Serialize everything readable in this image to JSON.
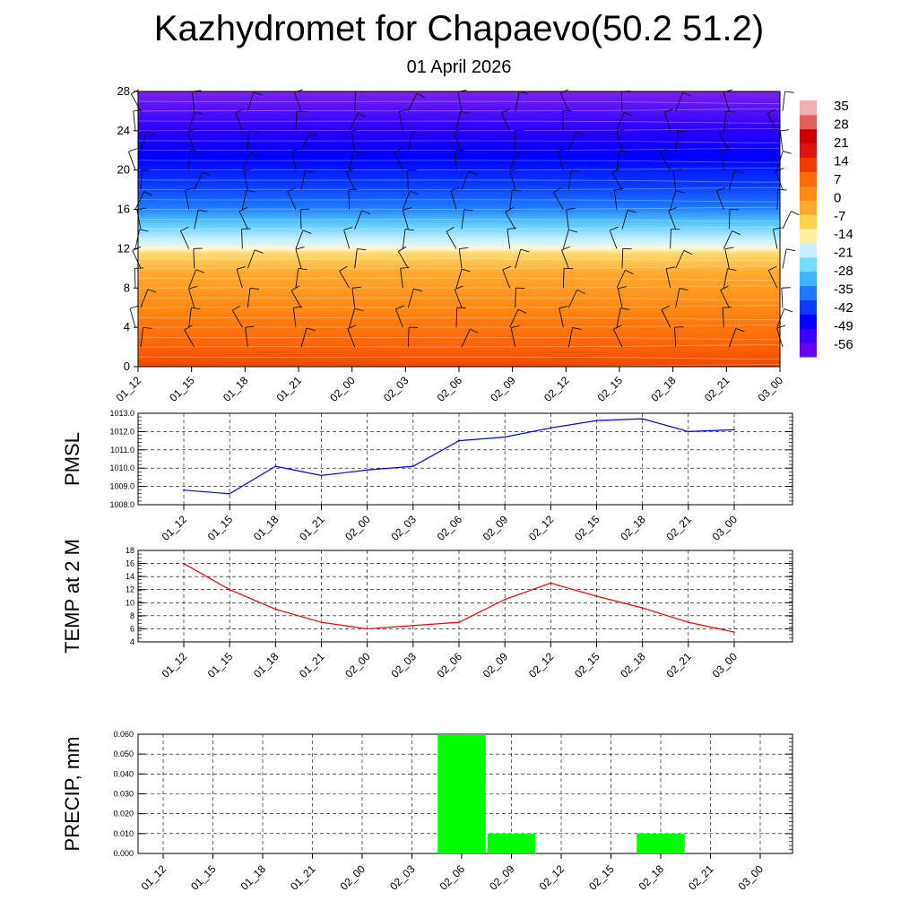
{
  "header": {
    "title": "Kazhydromet for Chapaevo(50.2 51.2)",
    "subtitle": "01 April 2026"
  },
  "colors": {
    "pmsl_line": "#0000ff",
    "temp_line": "#ff0000",
    "precip_bar": "#00ff00",
    "colorbar": [
      "#6a00f0",
      "#3b00ff",
      "#0000ff",
      "#0a3cff",
      "#1e78ff",
      "#3cb4ff",
      "#78dcff",
      "#c8f0ff",
      "#fff0a0",
      "#ffd04a",
      "#ffaa2e",
      "#ff8a14",
      "#ff6a0a",
      "#f03a00",
      "#dc1414",
      "#c80000",
      "#e06060",
      "#f0b0b0"
    ]
  },
  "chart_data": [
    {
      "type": "heatmap",
      "name": "cross_section",
      "title": "",
      "xlabel": "",
      "ylabel": "",
      "categories": [
        "01_12",
        "01_15",
        "01_18",
        "01_21",
        "02_00",
        "02_03",
        "02_06",
        "02_09",
        "02_12",
        "02_15",
        "02_18",
        "02_21",
        "03_00"
      ],
      "y_ticks": [
        "0",
        "4",
        "8",
        "12",
        "16",
        "20",
        "24",
        "28"
      ],
      "ylim": [
        0,
        28
      ],
      "colorbar_labels": [
        "35",
        "28",
        "21",
        "14",
        "7",
        "0",
        "-7",
        "-14",
        "-21",
        "-28",
        "-35",
        "-42",
        "-49",
        "-56"
      ],
      "levels": [
        0,
        2,
        4,
        6,
        8,
        10,
        12,
        14,
        16,
        18,
        20,
        22,
        24,
        26,
        28
      ],
      "temperature_by_level": [
        14,
        11,
        9,
        7,
        4,
        1,
        -4,
        -12,
        -24,
        -40,
        -52,
        -58,
        -57,
        -52,
        -48
      ],
      "wind_barbs": "present at each time and level"
    },
    {
      "type": "line",
      "name": "pmsl",
      "ylabel": "PMSL",
      "categories": [
        "01_12",
        "01_15",
        "01_18",
        "01_21",
        "02_00",
        "02_03",
        "02_06",
        "02_09",
        "02_12",
        "02_15",
        "02_18",
        "02_21",
        "03_00"
      ],
      "values": [
        1008.8,
        1008.6,
        1010.1,
        1009.6,
        1009.9,
        1010.1,
        1011.5,
        1011.7,
        1012.2,
        1012.6,
        1012.7,
        1012.0,
        1012.1
      ],
      "y_ticks": [
        "1008.0",
        "1009.0",
        "1010.0",
        "1011.0",
        "1012.0",
        "1013.0"
      ],
      "ylim": [
        1008.0,
        1013.0
      ]
    },
    {
      "type": "line",
      "name": "temp",
      "ylabel": "TEMP at 2 M",
      "categories": [
        "01_12",
        "01_15",
        "01_18",
        "01_21",
        "02_00",
        "02_03",
        "02_06",
        "02_09",
        "02_12",
        "02_15",
        "02_18",
        "02_21",
        "03_00"
      ],
      "values": [
        16.0,
        12.0,
        9.0,
        7.0,
        6.0,
        6.5,
        7.0,
        10.5,
        13.0,
        11.0,
        9.2,
        7.0,
        5.5
      ],
      "y_ticks": [
        "4",
        "6",
        "8",
        "10",
        "12",
        "14",
        "16",
        "18"
      ],
      "ylim": [
        4,
        18
      ]
    },
    {
      "type": "bar",
      "name": "precip",
      "ylabel": "PRECIP, mm",
      "categories": [
        "01_12",
        "01_15",
        "01_18",
        "01_21",
        "02_00",
        "02_03",
        "02_06",
        "02_09",
        "02_12",
        "02_15",
        "02_18",
        "02_21",
        "03_00"
      ],
      "values": [
        0,
        0,
        0,
        0,
        0,
        0,
        0.06,
        0.01,
        0,
        0,
        0.01,
        0,
        0
      ],
      "y_ticks": [
        "0.000",
        "0.010",
        "0.020",
        "0.030",
        "0.040",
        "0.050",
        "0.060"
      ],
      "ylim": [
        0,
        0.06
      ]
    }
  ]
}
